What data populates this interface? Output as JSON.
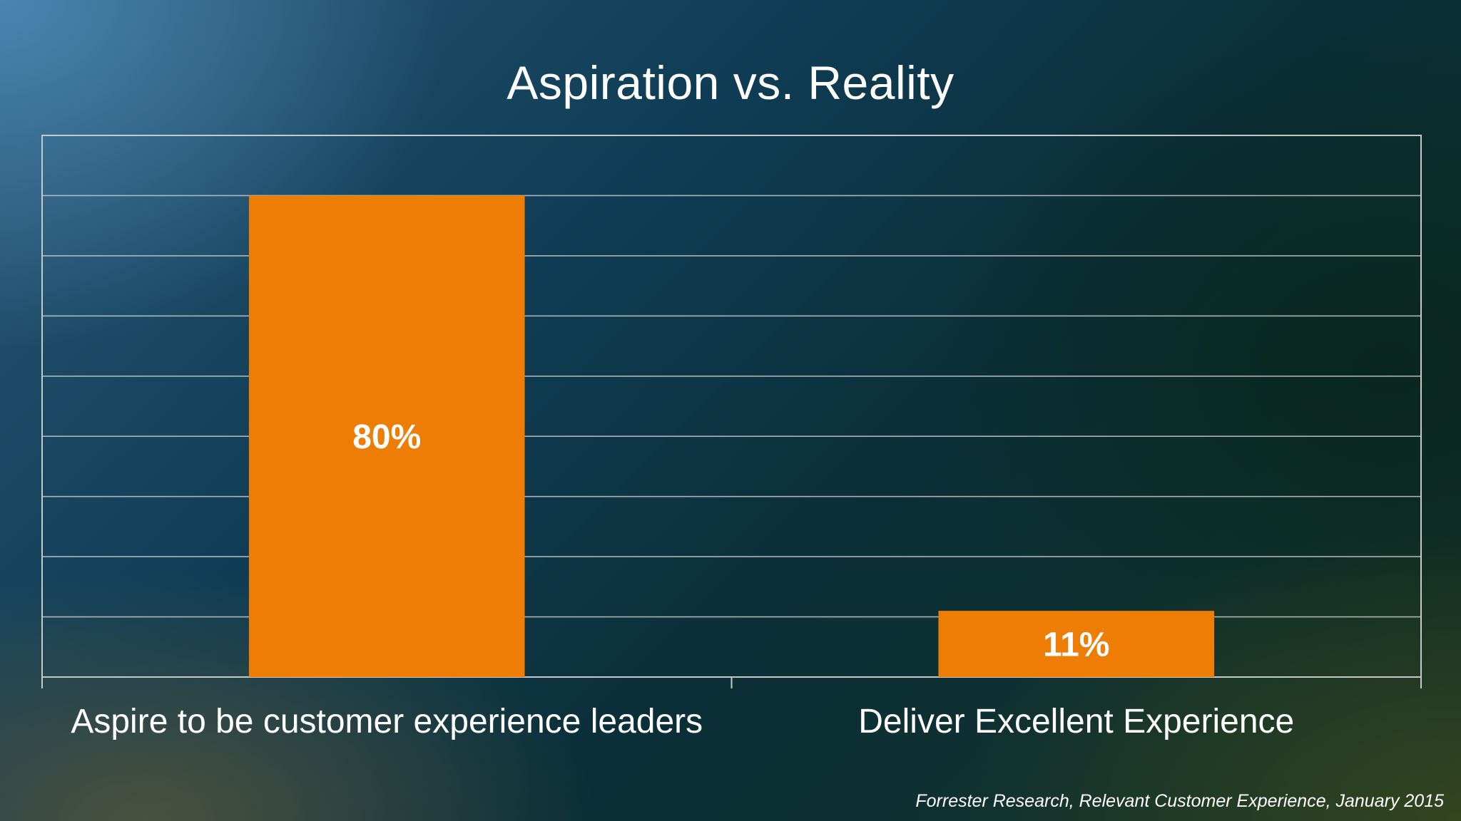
{
  "slide": {
    "title": "Aspiration vs. Reality",
    "source": "Forrester Research, Relevant Customer Experience, January 2015"
  },
  "colors": {
    "bar": "#ed7d05",
    "grid": "#c8c8c8",
    "text": "#ffffff"
  },
  "chart_data": {
    "type": "bar",
    "title": "Aspiration vs. Reality",
    "categories": [
      "Aspire to be customer experience leaders",
      "Deliver Excellent Experience"
    ],
    "values": [
      80,
      11
    ],
    "data_labels": [
      "80%",
      "11%"
    ],
    "ylim": [
      0,
      90
    ],
    "grid": true,
    "gridline_step": 10,
    "y_tick_labels_shown": false,
    "legend": "none"
  }
}
